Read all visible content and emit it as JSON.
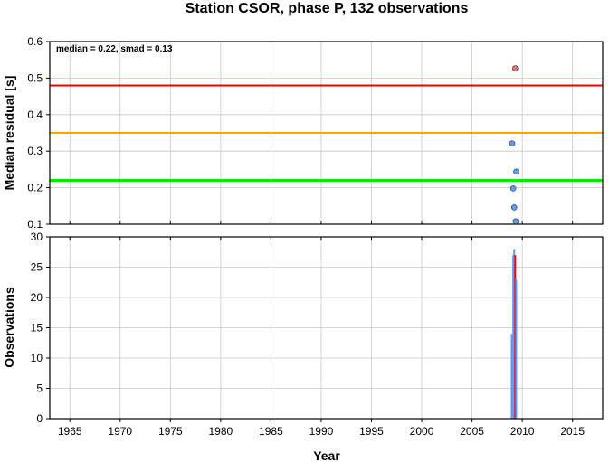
{
  "chart_data": {
    "title": "Station CSOR, phase P, 132 observations",
    "xlabel": "Year",
    "xlim": [
      1963,
      2018
    ],
    "x_ticks": [
      1965,
      1970,
      1975,
      1980,
      1985,
      1990,
      1995,
      2000,
      2005,
      2010,
      2015
    ],
    "charts": [
      {
        "type": "scatter",
        "ylabel": "Median residual [s]",
        "ylim": [
          0.1,
          0.6
        ],
        "y_ticks": [
          "0.1",
          "0.2",
          "0.3",
          "0.4",
          "0.5",
          "0.6"
        ],
        "grid": true,
        "annotation": "median = 0.22, smad = 0.13",
        "reference_lines": [
          {
            "value": 0.48,
            "color": "#ff0000"
          },
          {
            "value": 0.35,
            "color": "#ffa500"
          },
          {
            "value": 0.22,
            "color": "#00ee00"
          }
        ],
        "points": [
          {
            "x": 2009.3,
            "y": 0.527,
            "color": "#ff6666"
          },
          {
            "x": 2009.0,
            "y": 0.321,
            "color": "#5b9bf5"
          },
          {
            "x": 2009.4,
            "y": 0.244,
            "color": "#5b9bf5"
          },
          {
            "x": 2009.1,
            "y": 0.198,
            "color": "#5b9bf5"
          },
          {
            "x": 2009.2,
            "y": 0.146,
            "color": "#5b9bf5"
          },
          {
            "x": 2009.35,
            "y": 0.108,
            "color": "#5b9bf5"
          }
        ]
      },
      {
        "type": "bar",
        "ylabel": "Observations",
        "ylim": [
          0,
          30
        ],
        "y_ticks": [
          "0",
          "5",
          "10",
          "15",
          "20",
          "25",
          "30"
        ],
        "grid": true,
        "bars": [
          {
            "x": 2008.95,
            "value": 14,
            "color": "#5b9bf5"
          },
          {
            "x": 2009.1,
            "value": 27,
            "color": "#5b9bf5"
          },
          {
            "x": 2009.2,
            "value": 28,
            "color": "#5b9bf5"
          },
          {
            "x": 2009.3,
            "value": 27,
            "color": "#ff0000"
          },
          {
            "x": 2009.4,
            "value": 23,
            "color": "#5b9bf5"
          }
        ]
      }
    ]
  }
}
